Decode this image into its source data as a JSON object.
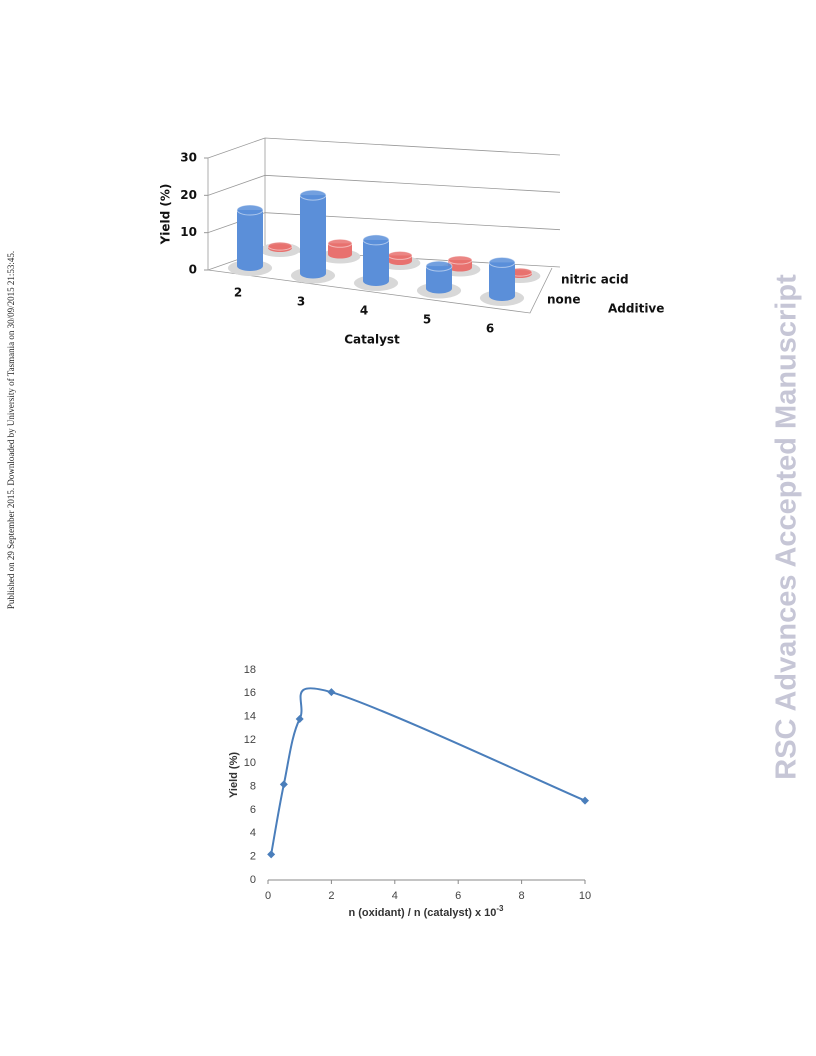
{
  "margin_note": "Published on 29 September 2015. Downloaded by University of Tasmania on 30/09/2015 21:53:45.",
  "watermark": "RSC Advances Accepted Manuscript",
  "chart_data": [
    {
      "type": "bar3d",
      "y_label": "Yield (%)",
      "x_label": "Catalyst",
      "z_label": "Additive",
      "categories": [
        "2",
        "3",
        "4",
        "5",
        "6"
      ],
      "series": [
        {
          "name": "none",
          "color": "#5b8fd9",
          "values": [
            15,
            21,
            11,
            6,
            9
          ]
        },
        {
          "name": "nitric acid",
          "color": "#e8716f",
          "values": [
            0.5,
            3,
            1.5,
            2,
            0.5
          ]
        }
      ],
      "ylim": [
        0,
        30
      ],
      "yticks": [
        0,
        10,
        20,
        30
      ],
      "grid": true
    },
    {
      "type": "line",
      "y_label": "Yield (%)",
      "x_label": "n (oxidant) / n (catalyst) x 10",
      "x_label_superscript": "-3",
      "x": [
        0.1,
        0.5,
        1,
        2,
        10
      ],
      "values": [
        2.2,
        8.2,
        13.8,
        16.1,
        6.8
      ],
      "color": "#4a7ebb",
      "xlim": [
        0,
        10
      ],
      "xticks": [
        0,
        2,
        4,
        6,
        8,
        10
      ],
      "ylim": [
        0,
        18
      ],
      "yticks": [
        0,
        2,
        4,
        6,
        8,
        10,
        12,
        14,
        16,
        18
      ],
      "grid": false
    }
  ]
}
